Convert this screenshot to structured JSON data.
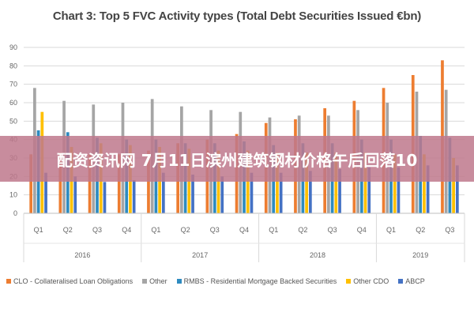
{
  "chart_data": {
    "type": "bar",
    "title": "Chart 3: Top 5 FVC Activity types (Total Debt Securities Issued €bn)",
    "ylim": [
      0,
      90
    ],
    "yticks": [
      0,
      10,
      20,
      30,
      40,
      50,
      60,
      70,
      80,
      90
    ],
    "grid": true,
    "legend_position": "bottom",
    "groups": [
      {
        "year": "2016",
        "quarters": [
          "Q1",
          "Q2",
          "Q3",
          "Q4"
        ]
      },
      {
        "year": "2017",
        "quarters": [
          "Q1",
          "Q2",
          "Q3",
          "Q4"
        ]
      },
      {
        "year": "2018",
        "quarters": [
          "Q1",
          "Q2",
          "Q3",
          "Q4"
        ]
      },
      {
        "year": "2019",
        "quarters": [
          "Q1",
          "Q2",
          "Q3"
        ]
      }
    ],
    "series": [
      {
        "name": "CLO - Collateralised Loan Obligations",
        "color": "#ed7d31",
        "values": [
          32,
          33,
          32,
          32,
          34,
          38,
          40,
          43,
          49,
          51,
          57,
          61,
          68,
          75,
          83
        ]
      },
      {
        "name": "Other",
        "color": "#a5a5a5",
        "values": [
          68,
          61,
          59,
          60,
          62,
          58,
          56,
          55,
          52,
          53,
          53,
          56,
          60,
          66,
          67
        ]
      },
      {
        "name": "RMBS - Residential Mortgage Backed Securities",
        "color": "#2e8bc0",
        "values": [
          45,
          44,
          41,
          40,
          40,
          38,
          38,
          39,
          37,
          38,
          38,
          40,
          40,
          42,
          41
        ]
      },
      {
        "name": "Other CDO",
        "color": "#ffc000",
        "values": [
          55,
          36,
          38,
          37,
          36,
          35,
          34,
          34,
          33,
          33,
          33,
          33,
          32,
          32,
          30
        ]
      },
      {
        "name": "ABCP",
        "color": "#4472c4",
        "values": [
          22,
          20,
          17,
          18,
          22,
          21,
          20,
          22,
          22,
          23,
          24,
          25,
          25,
          26,
          26
        ]
      }
    ]
  },
  "overlay": {
    "banner_text": "配资资讯网 7月11日滨州建筑钢材价格午后回落10"
  }
}
